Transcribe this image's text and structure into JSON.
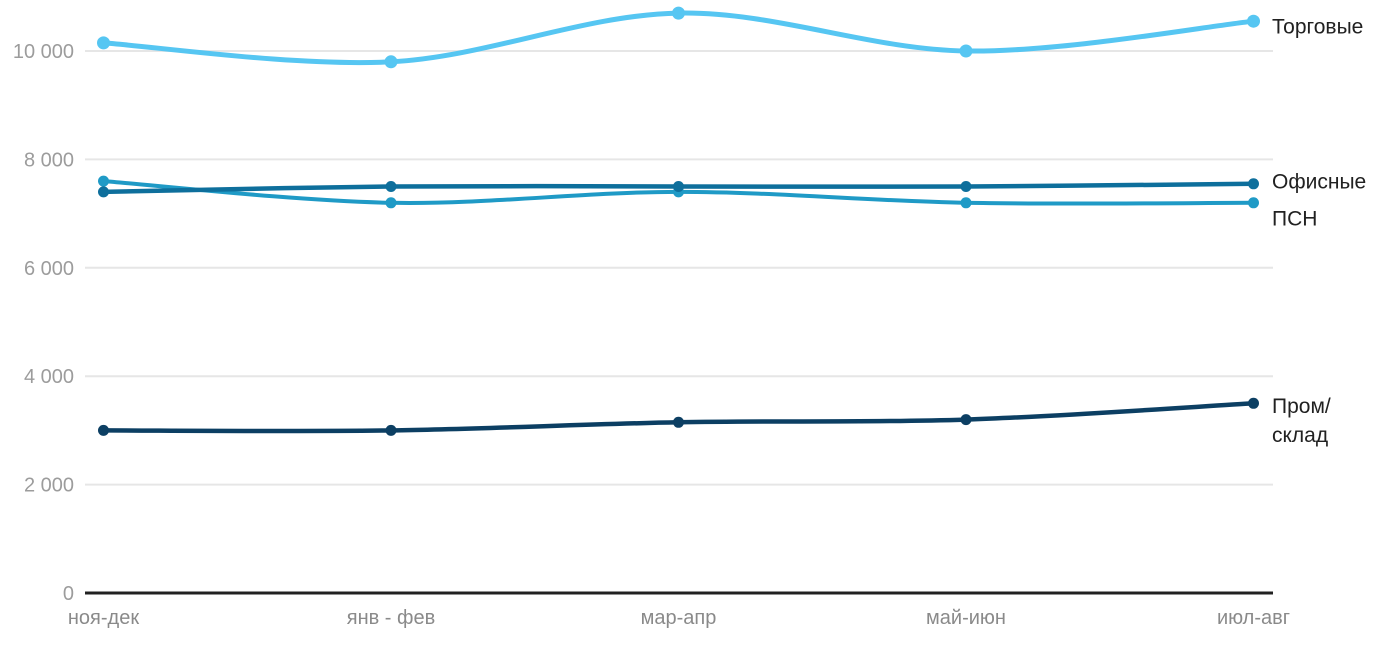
{
  "chart_data": {
    "type": "line",
    "title": "",
    "xlabel": "",
    "ylabel": "",
    "categories": [
      "ноя-дек",
      "янв - фев",
      "мар-апр",
      "май-июн",
      "июл-авг"
    ],
    "series": [
      {
        "id": "torgovye",
        "name": "Торговые",
        "label": "Торговые",
        "color": "#56c6f2",
        "values": [
          10150,
          9800,
          10700,
          10000,
          10550
        ]
      },
      {
        "id": "ofisnye",
        "name": "Офисные",
        "label": "Офисные",
        "color": "#0e6f9c",
        "values": [
          7400,
          7500,
          7500,
          7500,
          7550
        ]
      },
      {
        "id": "psn",
        "name": "ПСН",
        "label": "ПСН",
        "color": "#1f9ac6",
        "values": [
          7600,
          7200,
          7400,
          7200,
          7200
        ]
      },
      {
        "id": "prom-sklad",
        "name": "Пром/склад",
        "label": "Пром/\nсклад",
        "color": "#0c3f63",
        "values": [
          3000,
          3000,
          3150,
          3200,
          3500
        ]
      }
    ],
    "y_ticks": [
      {
        "value": 0,
        "label": "0"
      },
      {
        "value": 2000,
        "label": "2 000"
      },
      {
        "value": 4000,
        "label": "4 000"
      },
      {
        "value": 6000,
        "label": "6 000"
      },
      {
        "value": 8000,
        "label": "8 000"
      },
      {
        "value": 10000,
        "label": "10 000"
      }
    ],
    "ylim": [
      0,
      10940
    ],
    "grid": true,
    "legend_position": "right-of-line-ends",
    "colors": {
      "background": "#ffffff",
      "grid": "#e6e6e6",
      "axis": "#212121",
      "y_tick_text": "#9c9c9c",
      "x_tick_text": "#8a8a8a",
      "series_label_text": "#212121"
    }
  }
}
